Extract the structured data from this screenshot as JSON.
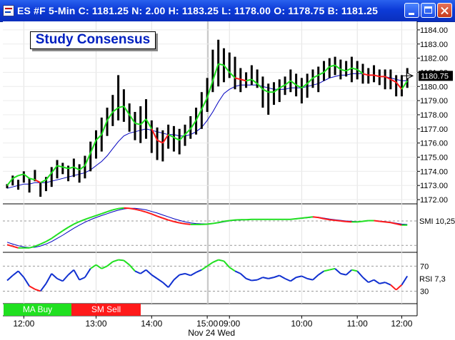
{
  "window": {
    "title": "ES #F 5-Min C:  1181.25 N:     2.00 H:  1183.25 L:  1178.00 O:  1178.75 B:  1181.25"
  },
  "colors": {
    "title_bar": "#0d3bd8",
    "ma_buy": "#20e020",
    "sm_sell": "#ff1a1a",
    "ma_line": "#0000c0",
    "price_bar": "#000000"
  },
  "study_box": {
    "label": "Study Consensus"
  },
  "legend": {
    "buy_label": "MA Buy",
    "sell_label": "SM Sell"
  },
  "chart_data": {
    "type": "ohlc",
    "price_axis": {
      "ticks": [
        "1184.00",
        "1183.00",
        "1182.00",
        "1181.00",
        "1180.00",
        "1179.00",
        "1178.00",
        "1177.00",
        "1176.00",
        "1175.00",
        "1174.00",
        "1173.00",
        "1172.00"
      ],
      "last_price_label": "1180.75",
      "range": [
        1171.7,
        1184.6
      ]
    },
    "time_axis": {
      "ticks": [
        "12:00",
        "13:00",
        "14:00",
        "15:00",
        "09:00",
        "10:00",
        "11:00",
        "12:00"
      ],
      "date_label": "Nov 24 Wed"
    },
    "bars_high_low": [
      [
        1172.8,
        1173.1
      ],
      [
        1173.0,
        1173.7
      ],
      [
        1172.7,
        1173.4
      ],
      [
        1173.2,
        1174.0
      ],
      [
        1172.5,
        1173.5
      ],
      [
        1173.3,
        1174.1
      ],
      [
        1172.2,
        1173.2
      ],
      [
        1172.6,
        1173.6
      ],
      [
        1172.9,
        1174.3
      ],
      [
        1173.5,
        1174.8
      ],
      [
        1173.8,
        1174.6
      ],
      [
        1173.3,
        1174.4
      ],
      [
        1173.6,
        1174.9
      ],
      [
        1173.2,
        1174.5
      ],
      [
        1173.5,
        1175.1
      ],
      [
        1174.0,
        1176.1
      ],
      [
        1174.9,
        1176.9
      ],
      [
        1175.4,
        1177.8
      ],
      [
        1176.5,
        1178.5
      ],
      [
        1177.2,
        1179.4
      ],
      [
        1177.6,
        1180.8
      ],
      [
        1177.5,
        1179.8
      ],
      [
        1176.8,
        1178.8
      ],
      [
        1176.2,
        1178.2
      ],
      [
        1176.0,
        1178.6
      ],
      [
        1176.3,
        1179.1
      ],
      [
        1175.3,
        1177.6
      ],
      [
        1174.8,
        1177.1
      ],
      [
        1174.7,
        1176.9
      ],
      [
        1175.6,
        1177.3
      ],
      [
        1175.4,
        1177.2
      ],
      [
        1175.2,
        1177.0
      ],
      [
        1175.8,
        1177.3
      ],
      [
        1176.3,
        1177.9
      ],
      [
        1176.6,
        1178.5
      ],
      [
        1177.0,
        1179.6
      ],
      [
        1178.2,
        1180.6
      ],
      [
        1179.6,
        1182.6
      ],
      [
        1180.0,
        1183.3
      ],
      [
        1180.3,
        1182.7
      ],
      [
        1180.6,
        1182.4
      ],
      [
        1179.8,
        1182.1
      ],
      [
        1179.6,
        1181.3
      ],
      [
        1179.9,
        1181.0
      ],
      [
        1180.1,
        1181.5
      ],
      [
        1179.9,
        1181.2
      ],
      [
        1178.5,
        1180.7
      ],
      [
        1178.0,
        1180.2
      ],
      [
        1178.7,
        1180.3
      ],
      [
        1178.9,
        1180.5
      ],
      [
        1179.4,
        1180.7
      ],
      [
        1179.6,
        1181.2
      ],
      [
        1179.3,
        1180.9
      ],
      [
        1178.8,
        1180.6
      ],
      [
        1179.2,
        1180.9
      ],
      [
        1179.9,
        1181.2
      ],
      [
        1179.6,
        1181.4
      ],
      [
        1180.4,
        1181.8
      ],
      [
        1180.6,
        1182.0
      ],
      [
        1180.8,
        1182.1
      ],
      [
        1180.5,
        1181.9
      ],
      [
        1180.7,
        1181.8
      ],
      [
        1180.3,
        1182.1
      ],
      [
        1180.5,
        1181.8
      ],
      [
        1180.2,
        1181.6
      ],
      [
        1180.2,
        1181.3
      ],
      [
        1180.3,
        1181.5
      ],
      [
        1180.1,
        1181.2
      ],
      [
        1179.8,
        1181.2
      ],
      [
        1179.8,
        1181.2
      ],
      [
        1179.3,
        1180.8
      ],
      [
        1179.3,
        1180.8
      ],
      [
        1179.9,
        1181.3
      ]
    ],
    "study_consensus": [
      1173.0,
      1173.5,
      1173.7,
      1173.8,
      1173.5,
      1173.4,
      1173.2,
      1173.4,
      1173.9,
      1174.4,
      1174.3,
      1174.2,
      1174.3,
      1174.1,
      1174.4,
      1175.3,
      1176.2,
      1176.6,
      1177.6,
      1178.2,
      1178.5,
      1178.6,
      1178.0,
      1177.4,
      1177.3,
      1177.7,
      1177.0,
      1176.2,
      1176.0,
      1176.6,
      1176.4,
      1176.2,
      1176.6,
      1177.0,
      1177.6,
      1178.4,
      1179.2,
      1180.4,
      1181.6,
      1181.5,
      1181.0,
      1180.6,
      1180.5,
      1180.4,
      1180.5,
      1180.2,
      1179.8,
      1179.6,
      1179.6,
      1179.9,
      1180.1,
      1180.4,
      1180.1,
      1179.9,
      1180.2,
      1180.6,
      1180.8,
      1181.0,
      1181.4,
      1181.5,
      1181.2,
      1181.1,
      1181.3,
      1181.2,
      1180.9,
      1180.8,
      1180.8,
      1180.7,
      1180.7,
      1180.5,
      1180.3,
      1179.8,
      1180.4
    ],
    "study_signal": [
      "buy",
      "buy",
      "buy",
      "buy",
      "buy",
      "buy",
      "sell",
      "buy",
      "buy",
      "buy",
      "buy",
      "buy",
      "buy",
      "buy",
      "buy",
      "buy",
      "buy",
      "buy",
      "buy",
      "buy",
      "buy",
      "buy",
      "buy",
      "buy",
      "buy",
      "buy",
      "buy",
      "sell",
      "sell",
      "sell",
      "buy",
      "buy",
      "buy",
      "buy",
      "buy",
      "buy",
      "buy",
      "buy",
      "buy",
      "buy",
      "buy",
      "buy",
      "sell",
      "sell",
      "buy",
      "buy",
      "buy",
      "buy",
      "buy",
      "buy",
      "buy",
      "buy",
      "buy",
      "buy",
      "buy",
      "buy",
      "buy",
      "buy",
      "buy",
      "buy",
      "buy",
      "buy",
      "buy",
      "buy",
      "buy",
      "sell",
      "sell",
      "sell",
      "sell",
      "sell",
      "sell",
      "sell",
      "buy"
    ],
    "moving_average": [
      1172.8,
      1172.9,
      1173.0,
      1173.1,
      1173.1,
      1173.2,
      1173.2,
      1173.2,
      1173.3,
      1173.4,
      1173.5,
      1173.6,
      1173.7,
      1173.8,
      1173.9,
      1174.1,
      1174.4,
      1174.7,
      1175.1,
      1175.6,
      1176.1,
      1176.5,
      1176.7,
      1176.8,
      1176.9,
      1177.0,
      1176.9,
      1176.8,
      1176.7,
      1176.6,
      1176.6,
      1176.5,
      1176.5,
      1176.6,
      1176.8,
      1177.1,
      1177.6,
      1178.2,
      1178.9,
      1179.5,
      1179.8,
      1180.0,
      1180.1,
      1180.1,
      1180.1,
      1180.1,
      1180.0,
      1179.9,
      1179.8,
      1179.8,
      1179.8,
      1179.9,
      1179.9,
      1179.9,
      1180.0,
      1180.1,
      1180.2,
      1180.4,
      1180.6,
      1180.7,
      1180.8,
      1180.8,
      1180.9,
      1180.9,
      1180.9,
      1180.8,
      1180.8,
      1180.7,
      1180.7,
      1180.6,
      1180.5,
      1180.4,
      1180.4
    ],
    "smi_panel": {
      "label": "SMI 10,25",
      "smi": [
        -0.9,
        -0.95,
        -1.0,
        -1.0,
        -1.0,
        -0.95,
        -0.88,
        -0.8,
        -0.7,
        -0.58,
        -0.46,
        -0.35,
        -0.25,
        -0.17,
        -0.1,
        -0.04,
        0.02,
        0.08,
        0.14,
        0.2,
        0.24,
        0.26,
        0.25,
        0.22,
        0.18,
        0.13,
        0.07,
        0.0,
        -0.06,
        -0.12,
        -0.17,
        -0.21,
        -0.24,
        -0.26,
        -0.26,
        -0.26,
        -0.25,
        -0.23,
        -0.2,
        -0.16,
        -0.14,
        -0.12,
        -0.11,
        -0.11,
        -0.1,
        -0.1,
        -0.1,
        -0.1,
        -0.1,
        -0.1,
        -0.1,
        -0.1,
        -0.08,
        -0.06,
        -0.04,
        -0.02,
        -0.04,
        -0.08,
        -0.11,
        -0.13,
        -0.15,
        -0.17,
        -0.18,
        -0.18,
        -0.16,
        -0.14,
        -0.14,
        -0.16,
        -0.18,
        -0.2,
        -0.24,
        -0.28,
        -0.28
      ],
      "signal": [
        -0.82,
        -0.88,
        -0.93,
        -0.97,
        -0.99,
        -0.98,
        -0.94,
        -0.88,
        -0.8,
        -0.7,
        -0.6,
        -0.49,
        -0.38,
        -0.28,
        -0.19,
        -0.11,
        -0.04,
        0.02,
        0.08,
        0.14,
        0.19,
        0.23,
        0.25,
        0.25,
        0.23,
        0.2,
        0.15,
        0.1,
        0.04,
        -0.02,
        -0.08,
        -0.13,
        -0.18,
        -0.21,
        -0.23,
        -0.24,
        -0.24,
        -0.23,
        -0.21,
        -0.18,
        -0.15,
        -0.13,
        -0.12,
        -0.11,
        -0.1,
        -0.1,
        -0.1,
        -0.1,
        -0.1,
        -0.1,
        -0.1,
        -0.1,
        -0.09,
        -0.07,
        -0.05,
        -0.03,
        -0.03,
        -0.06,
        -0.09,
        -0.11,
        -0.13,
        -0.15,
        -0.16,
        -0.17,
        -0.16,
        -0.15,
        -0.14,
        -0.15,
        -0.17,
        -0.19,
        -0.22,
        -0.25,
        -0.26
      ],
      "range": [
        -1.05,
        0.3
      ]
    },
    "rsi_panel": {
      "label": "RSI 7,3",
      "ticks": [
        "70",
        "30"
      ],
      "values": [
        47,
        55,
        62,
        52,
        38,
        33,
        30,
        42,
        58,
        50,
        46,
        56,
        64,
        48,
        52,
        66,
        72,
        66,
        70,
        77,
        80,
        79,
        72,
        62,
        58,
        64,
        56,
        50,
        44,
        36,
        48,
        56,
        58,
        55,
        60,
        64,
        70,
        76,
        80,
        78,
        68,
        62,
        58,
        50,
        47,
        48,
        52,
        50,
        52,
        55,
        50,
        46,
        52,
        54,
        50,
        48,
        56,
        62,
        64,
        66,
        58,
        56,
        64,
        62,
        52,
        44,
        48,
        42,
        44,
        40,
        32,
        40,
        54
      ],
      "range": [
        10,
        92
      ]
    }
  }
}
